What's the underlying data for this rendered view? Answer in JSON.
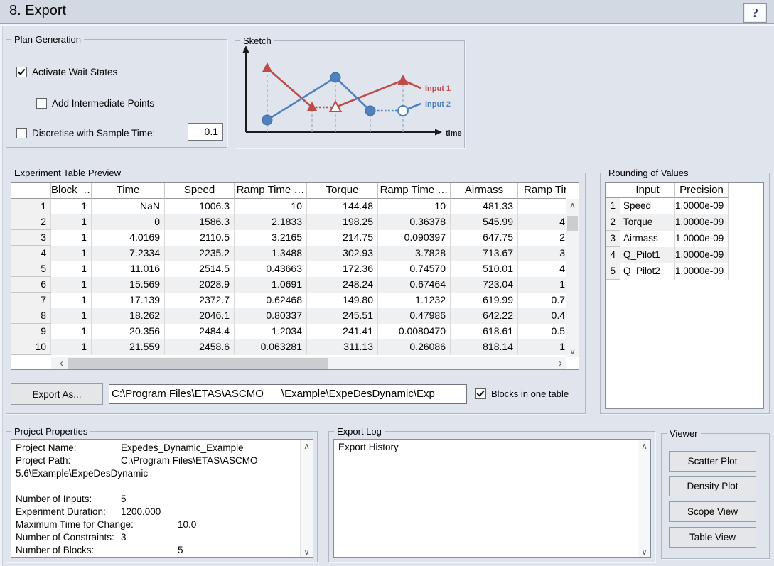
{
  "header": {
    "title": "8. Export",
    "help_label": "?"
  },
  "plan_generation": {
    "title": "Plan Generation",
    "activate_wait_states": {
      "label": "Activate Wait States",
      "checked": true
    },
    "add_intermediate_points": {
      "label": "Add Intermediate Points",
      "checked": false
    },
    "discretise": {
      "label": "Discretise with Sample Time:",
      "checked": false,
      "sample_time": "0.1"
    }
  },
  "sketch": {
    "title": "Sketch",
    "series": [
      {
        "name": "Input 1",
        "color": "#be4b48"
      },
      {
        "name": "Input 2",
        "color": "#4f81bd"
      }
    ],
    "xlabel": "time"
  },
  "experiment_table": {
    "title": "Experiment Table Preview",
    "columns": [
      "",
      "Block_…",
      "Time",
      "Speed",
      "Ramp Time …",
      "Torque",
      "Ramp Time …",
      "Airmass",
      "Ramp Tir"
    ],
    "rows": [
      [
        "1",
        "1",
        "NaN",
        "1006.3",
        "10",
        "144.48",
        "10",
        "481.33",
        ""
      ],
      [
        "2",
        "1",
        "0",
        "1586.3",
        "2.1833",
        "198.25",
        "0.36378",
        "545.99",
        "4"
      ],
      [
        "3",
        "1",
        "4.0169",
        "2110.5",
        "3.2165",
        "214.75",
        "0.090397",
        "647.75",
        "2"
      ],
      [
        "4",
        "1",
        "7.2334",
        "2235.2",
        "1.3488",
        "302.93",
        "3.7828",
        "713.67",
        "3"
      ],
      [
        "5",
        "1",
        "11.016",
        "2514.5",
        "0.43663",
        "172.36",
        "0.74570",
        "510.01",
        "4"
      ],
      [
        "6",
        "1",
        "15.569",
        "2028.9",
        "1.0691",
        "248.24",
        "0.67464",
        "723.04",
        "1"
      ],
      [
        "7",
        "1",
        "17.139",
        "2372.7",
        "0.62468",
        "149.80",
        "1.1232",
        "619.99",
        "0.7"
      ],
      [
        "8",
        "1",
        "18.262",
        "2046.1",
        "0.80337",
        "245.51",
        "0.47986",
        "642.22",
        "0.4"
      ],
      [
        "9",
        "1",
        "20.356",
        "2484.4",
        "1.2034",
        "241.41",
        "0.0080470",
        "618.61",
        "0.5"
      ],
      [
        "10",
        "1",
        "21.559",
        "2458.6",
        "0.063281",
        "311.13",
        "0.26086",
        "818.14",
        "1"
      ]
    ]
  },
  "rounding": {
    "title": "Rounding of Values",
    "columns": [
      "",
      "Input",
      "Precision"
    ],
    "rows": [
      [
        "1",
        "Speed",
        "1.0000e-09"
      ],
      [
        "2",
        "Torque",
        "1.0000e-09"
      ],
      [
        "3",
        "Airmass",
        "1.0000e-09"
      ],
      [
        "4",
        "Q_Pilot1",
        "1.0000e-09"
      ],
      [
        "5",
        "Q_Pilot2",
        "1.0000e-09"
      ]
    ]
  },
  "export_bar": {
    "export_as_label": "Export As...",
    "path": "C:\\Program Files\\ETAS\\ASCMO      \\Example\\ExpeDesDynamic\\Exp",
    "blocks_checkbox": {
      "label": "Blocks in one table",
      "checked": true
    }
  },
  "project_properties": {
    "title": "Project Properties",
    "lines": [
      {
        "label": "Project Name:",
        "value": "Expedes_Dynamic_Example",
        "stop": "v1"
      },
      {
        "label": "Project Path:",
        "value": "C:\\Program Files\\ETAS\\ASCMO",
        "stop": "v1"
      },
      {
        "label": "5.6\\Example\\ExpeDesDynamic",
        "value": "",
        "stop": ""
      },
      {
        "label": "",
        "value": "",
        "stop": ""
      },
      {
        "label": "Number of Inputs:",
        "value": "5",
        "stop": "v1"
      },
      {
        "label": "Experiment Duration:",
        "value": "1200.000",
        "stop": "v1"
      },
      {
        "label": "Maximum Time for Change:",
        "value": "10.0",
        "stop": "v2"
      },
      {
        "label": "Number of Constraints:",
        "value": "3",
        "stop": "v1"
      },
      {
        "label": "Number of Blocks:",
        "value": "5",
        "stop": "v2"
      }
    ]
  },
  "export_log": {
    "title": "Export Log",
    "content": "Export History"
  },
  "viewer": {
    "title": "Viewer",
    "buttons": [
      "Scatter Plot",
      "Density Plot",
      "Scope View",
      "Table View"
    ]
  }
}
